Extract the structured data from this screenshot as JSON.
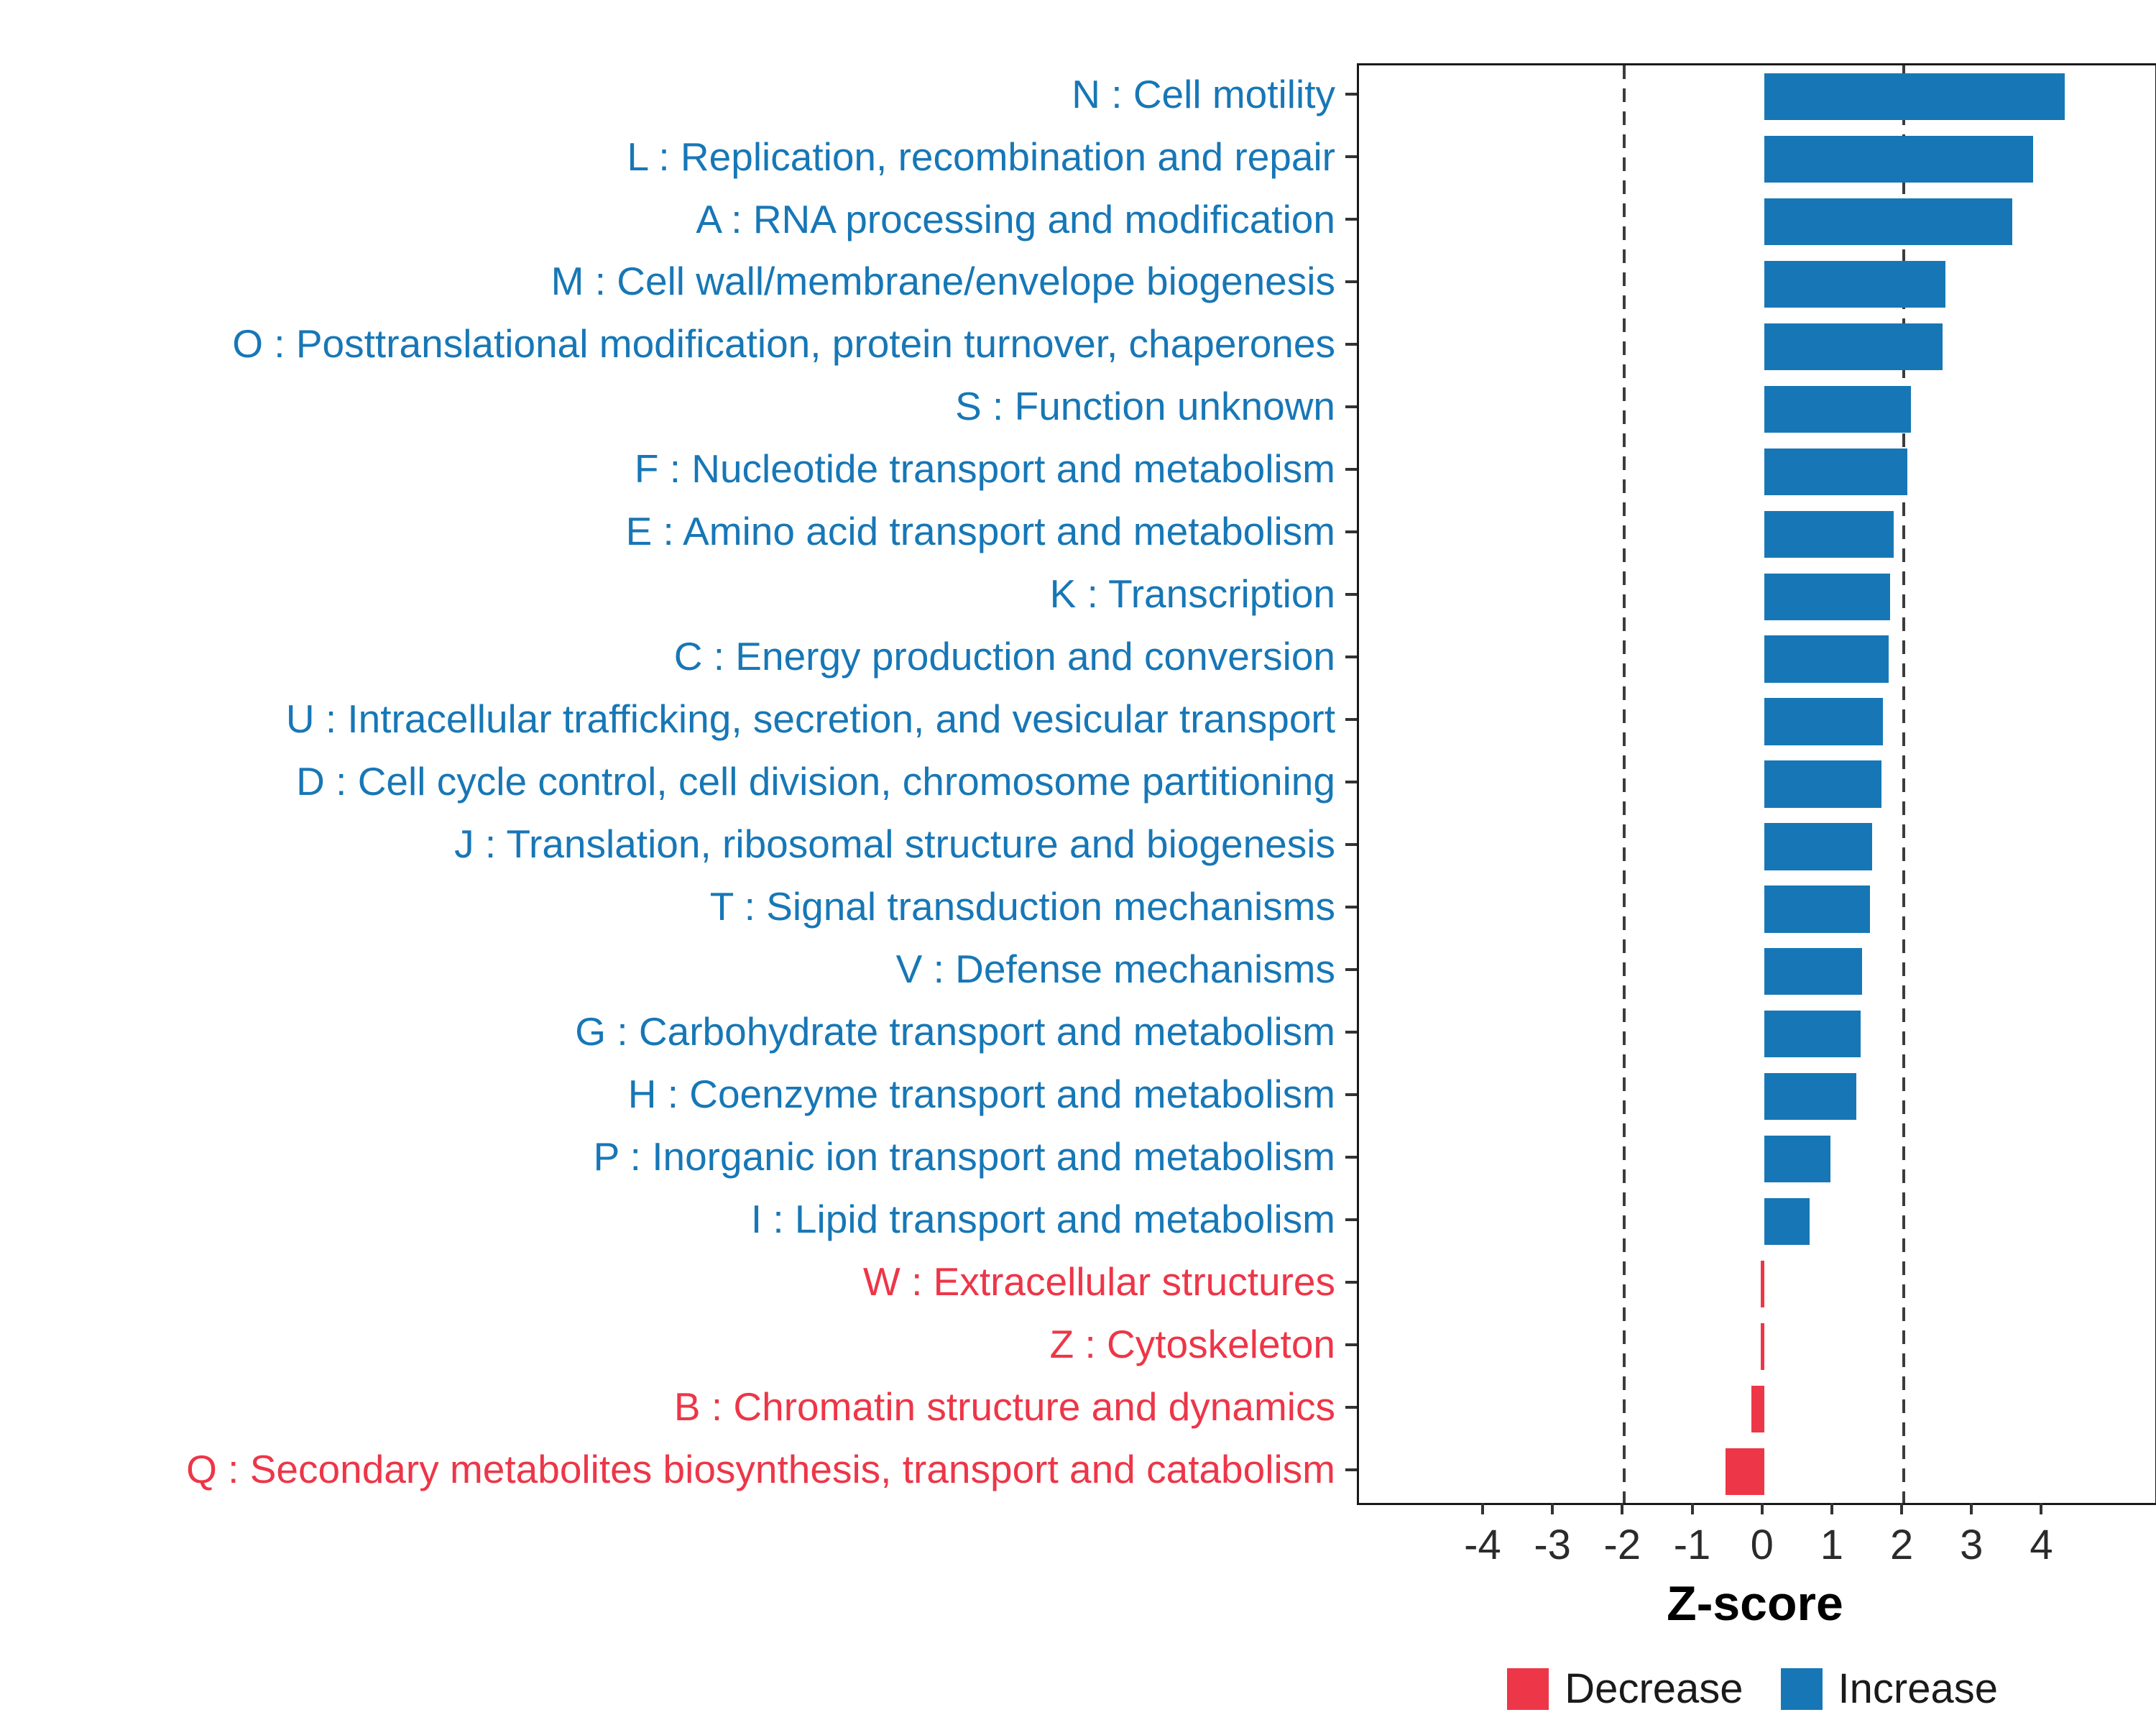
{
  "accent_colors": {
    "increase_blue": "#1777B6",
    "decrease_red": "#ED3648",
    "axis_text": "#2b2b2b",
    "panel_border": "#1a1a1a"
  },
  "chart_data": {
    "type": "bar",
    "orientation": "horizontal",
    "title": "",
    "xlabel": "Z-score",
    "ylabel": "",
    "xlim": [
      -5.8,
      5.6
    ],
    "xticks": [
      -4,
      -3,
      -2,
      -1,
      0,
      1,
      2,
      3,
      4
    ],
    "reference_lines": [
      -2,
      2
    ],
    "grid": false,
    "legend_position": "bottom-right",
    "colors": {
      "increase": "#1777B6",
      "decrease": "#ED3648"
    },
    "legend_items": [
      {
        "label": "Decrease",
        "color": "#ED3648"
      },
      {
        "label": "Increase",
        "color": "#1777B6"
      }
    ],
    "categories": [
      "N : Cell motility",
      "L : Replication, recombination and repair",
      "A : RNA processing and modification",
      "M : Cell wall/membrane/envelope biogenesis",
      "O : Posttranslational modification, protein turnover, chaperones",
      "S : Function unknown",
      "F : Nucleotide transport and metabolism",
      "E : Amino acid transport and metabolism",
      "K : Transcription",
      "C : Energy production and conversion",
      "U : Intracellular trafficking, secretion, and vesicular transport",
      "D : Cell cycle control, cell division, chromosome partitioning",
      "J : Translation, ribosomal structure and biogenesis",
      "T : Signal transduction mechanisms",
      "V : Defense mechanisms",
      "G : Carbohydrate transport and metabolism",
      "H : Coenzyme transport and metabolism",
      "P : Inorganic ion transport and metabolism",
      "I : Lipid transport and metabolism",
      "W : Extracellular structures",
      "Z : Cytoskeleton",
      "B : Chromatin structure and dynamics",
      "Q : Secondary metabolites biosynthesis, transport and catabolism"
    ],
    "values": [
      4.3,
      3.85,
      3.55,
      2.6,
      2.55,
      2.1,
      2.05,
      1.85,
      1.8,
      1.78,
      1.7,
      1.68,
      1.55,
      1.52,
      1.4,
      1.38,
      1.32,
      0.95,
      0.65,
      -0.05,
      -0.05,
      -0.18,
      -0.55
    ],
    "direction": [
      "increase",
      "increase",
      "increase",
      "increase",
      "increase",
      "increase",
      "increase",
      "increase",
      "increase",
      "increase",
      "increase",
      "increase",
      "increase",
      "increase",
      "increase",
      "increase",
      "increase",
      "increase",
      "increase",
      "decrease",
      "decrease",
      "decrease",
      "decrease"
    ]
  }
}
